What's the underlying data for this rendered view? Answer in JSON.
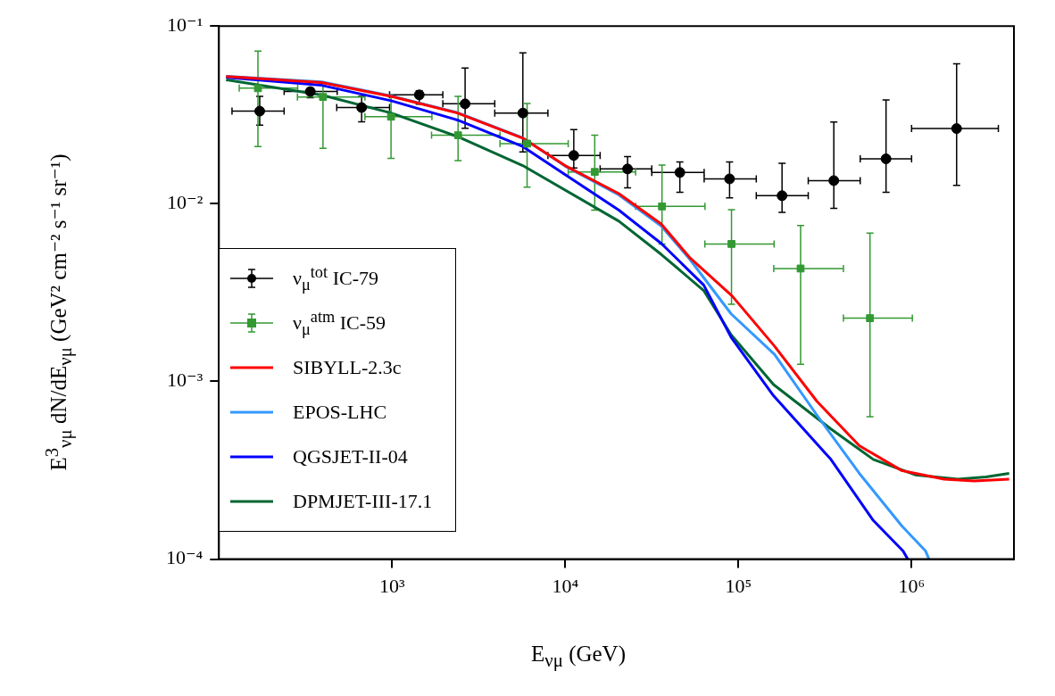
{
  "chart_data": {
    "type": "scatter",
    "xlabel": "E$_{νμ}$ (GeV)",
    "ylabel": "E$^{3}$$_{νμ}$ dN/dE$_{νμ}$  (GeV² cm⁻² s⁻¹ sr⁻¹)",
    "log": "xy",
    "xlim": [
      100,
      3900000
    ],
    "ylim": [
      0.0001,
      0.1
    ],
    "xticks": [
      {
        "value": 1000,
        "label": "10³"
      },
      {
        "value": 10000,
        "label": "10⁴"
      },
      {
        "value": 100000,
        "label": "10⁵"
      },
      {
        "value": 1000000,
        "label": "10⁶"
      }
    ],
    "yticks": [
      {
        "value": 0.0001,
        "label": "10⁻⁴"
      },
      {
        "value": 0.001,
        "label": "10⁻³"
      },
      {
        "value": 0.01,
        "label": "10⁻²"
      },
      {
        "value": 0.1,
        "label": "10⁻¹"
      }
    ],
    "legend": "left",
    "series": [
      {
        "name": "ν$_{μ}$$^{tot}$ IC-79",
        "marker": "circle",
        "color": "#000000",
        "x": [
          172,
          337,
          667,
          1435,
          2640,
          5690,
          11200,
          22900,
          45900,
          88900,
          178600,
          355600,
          712000,
          1820000
        ],
        "values": [
          0.0332,
          0.0428,
          0.0348,
          0.041,
          0.0365,
          0.0324,
          0.0187,
          0.0157,
          0.015,
          0.0138,
          0.0111,
          0.0135,
          0.0179,
          0.0265
        ],
        "errors": [
          [
            0.0277,
            0.0402
          ],
          [
            0.0395,
            0.0446
          ],
          [
            0.0289,
            0.0402
          ],
          [
            0.0363,
            0.0432
          ],
          [
            0.0266,
            0.058
          ],
          [
            0.0196,
            0.0706
          ],
          [
            0.0159,
            0.0261
          ],
          [
            0.0123,
            0.0184
          ],
          [
            0.0116,
            0.0172
          ],
          [
            0.0108,
            0.0172
          ],
          [
            0.00895,
            0.0169
          ],
          [
            0.00942,
            0.0288
          ],
          [
            0.0116,
            0.0384
          ],
          [
            0.0127,
            0.0614
          ]
        ],
        "xerrors": [
          [
            119,
            238
          ],
          [
            238,
            482
          ],
          [
            479,
            967
          ],
          [
            967,
            1963
          ],
          [
            1963,
            3917
          ],
          [
            3917,
            7940
          ],
          [
            7940,
            15900
          ],
          [
            15900,
            31600
          ],
          [
            31600,
            63400
          ],
          [
            63400,
            126800
          ],
          [
            126800,
            253000
          ],
          [
            253000,
            505000
          ],
          [
            505000,
            1000000
          ],
          [
            1000000,
            3170000
          ]
        ]
      },
      {
        "name": "ν$_{μ}$$^{atm}$ IC-59",
        "marker": "square",
        "color": "#339933",
        "x": [
          168,
          399,
          986,
          2404,
          6020,
          14800,
          36200,
          91200,
          228600,
          575000
        ],
        "values": [
          0.0447,
          0.0399,
          0.0309,
          0.0243,
          0.0218,
          0.0151,
          0.00966,
          0.00594,
          0.00432,
          0.00227
        ],
        "errors": [
          [
            0.021,
            0.0724
          ],
          [
            0.0205,
            0.0475
          ],
          [
            0.018,
            0.0402
          ],
          [
            0.0175,
            0.0402
          ],
          [
            0.0124,
            0.0367
          ],
          [
            0.0092,
            0.0243
          ],
          [
            0.00594,
            0.0165
          ],
          [
            0.00272,
            0.00927
          ],
          [
            0.00125,
            0.00754
          ],
          [
            0.000634,
            0.00684
          ]
        ],
        "xerrors": [
          [
            131,
            285
          ],
          [
            284,
            697
          ],
          [
            697,
            1698
          ],
          [
            1690,
            4200
          ],
          [
            4200,
            10400
          ],
          [
            10400,
            25500
          ],
          [
            25500,
            64100
          ],
          [
            64000,
            160700
          ],
          [
            160000,
            404000
          ],
          [
            404000,
            1010000
          ]
        ]
      },
      {
        "name": "SIBYLL-2.3c",
        "type": "line",
        "color": "#ff0000",
        "x": [
          110,
          392,
          987,
          2380,
          5680,
          9970,
          20400,
          35800,
          52100,
          91900,
          161500,
          284000,
          499000,
          877000,
          1540000,
          2300000,
          3660000
        ],
        "values": [
          0.052,
          0.0481,
          0.0402,
          0.0324,
          0.0234,
          0.0164,
          0.0114,
          0.0077,
          0.005,
          0.00303,
          0.00158,
          0.000773,
          0.000435,
          0.000315,
          0.000282,
          0.000275,
          0.000282
        ]
      },
      {
        "name": "EPOS-LHC",
        "type": "line",
        "color": "#3399ff",
        "x": [
          110,
          392,
          987,
          2380,
          5680,
          9970,
          20400,
          35800,
          52100,
          90800,
          161500,
          284000,
          499000,
          877000,
          1205000,
          1260000
        ],
        "values": [
          0.0522,
          0.0485,
          0.0405,
          0.0326,
          0.0235,
          0.0163,
          0.0112,
          0.0075,
          0.0049,
          0.0024,
          0.00142,
          0.000646,
          0.000304,
          0.000154,
          0.000111,
          0.0001
        ]
      },
      {
        "name": "QGSJET-II-04",
        "type": "line",
        "color": "#0000ff",
        "x": [
          110,
          392,
          987,
          2380,
          5680,
          20400,
          35800,
          63000,
          90800,
          159600,
          342000,
          601000,
          893000,
          950000
        ],
        "values": [
          0.0515,
          0.0464,
          0.038,
          0.0296,
          0.021,
          0.0092,
          0.00598,
          0.00349,
          0.00177,
          0.00083,
          0.000364,
          0.000165,
          0.000111,
          0.0001
        ]
      },
      {
        "name": "DPMJET-III-17.1",
        "type": "line",
        "color": "#006633",
        "x": [
          110,
          392,
          987,
          2380,
          5680,
          20400,
          35800,
          63000,
          90800,
          159600,
          342000,
          601000,
          1050000,
          1850000,
          2690000,
          3660000
        ],
        "values": [
          0.0498,
          0.0409,
          0.0324,
          0.0239,
          0.0164,
          0.00798,
          0.00519,
          0.00325,
          0.00183,
          0.00096,
          0.00054,
          0.000364,
          0.000298,
          0.000282,
          0.00029,
          0.000304
        ]
      }
    ]
  }
}
